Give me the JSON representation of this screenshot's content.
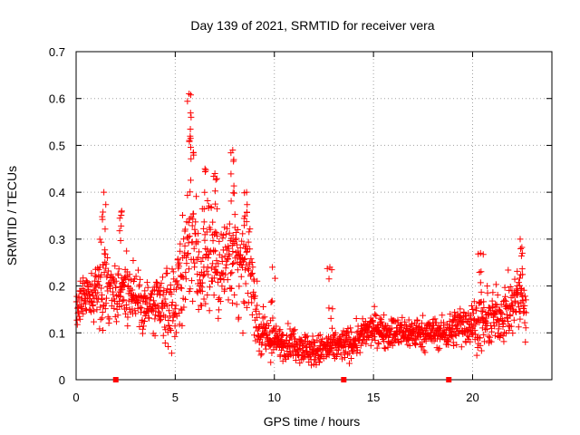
{
  "chart_data": {
    "type": "scatter",
    "title": "Day 139 of 2021, SRMTID for receiver vera",
    "xlabel": "GPS time / hours",
    "ylabel": "SRMTID / TECUs",
    "xlim": [
      0,
      24
    ],
    "ylim": [
      0,
      0.7
    ],
    "xticks": [
      "0",
      "5",
      "10",
      "15",
      "20"
    ],
    "yticks": [
      "0",
      "0.1",
      "0.2",
      "0.3",
      "0.4",
      "0.5",
      "0.6",
      "0.7"
    ],
    "grid": true,
    "marker": "+",
    "color": "#ff0000",
    "gap_markers_hours": [
      2.0,
      13.5,
      18.8
    ],
    "series": [
      {
        "name": "SRMTID",
        "envelope": [
          {
            "x": 0.0,
            "y": 0.15,
            "spread": 0.04
          },
          {
            "x": 0.5,
            "y": 0.17,
            "spread": 0.05
          },
          {
            "x": 1.0,
            "y": 0.19,
            "spread": 0.06
          },
          {
            "x": 1.5,
            "y": 0.2,
            "spread": 0.08
          },
          {
            "x": 2.0,
            "y": 0.18,
            "spread": 0.06
          },
          {
            "x": 2.5,
            "y": 0.2,
            "spread": 0.07
          },
          {
            "x": 3.0,
            "y": 0.18,
            "spread": 0.06
          },
          {
            "x": 3.5,
            "y": 0.16,
            "spread": 0.06
          },
          {
            "x": 4.0,
            "y": 0.15,
            "spread": 0.06
          },
          {
            "x": 4.5,
            "y": 0.15,
            "spread": 0.07
          },
          {
            "x": 5.0,
            "y": 0.17,
            "spread": 0.08
          },
          {
            "x": 5.5,
            "y": 0.25,
            "spread": 0.12
          },
          {
            "x": 5.8,
            "y": 0.35,
            "spread": 0.15
          },
          {
            "x": 6.2,
            "y": 0.22,
            "spread": 0.1
          },
          {
            "x": 6.8,
            "y": 0.28,
            "spread": 0.11
          },
          {
            "x": 7.3,
            "y": 0.22,
            "spread": 0.09
          },
          {
            "x": 7.8,
            "y": 0.3,
            "spread": 0.12
          },
          {
            "x": 8.3,
            "y": 0.22,
            "spread": 0.09
          },
          {
            "x": 8.8,
            "y": 0.25,
            "spread": 0.08
          },
          {
            "x": 9.2,
            "y": 0.1,
            "spread": 0.05
          },
          {
            "x": 10.0,
            "y": 0.08,
            "spread": 0.03
          },
          {
            "x": 11.0,
            "y": 0.08,
            "spread": 0.03
          },
          {
            "x": 12.0,
            "y": 0.06,
            "spread": 0.03
          },
          {
            "x": 13.0,
            "y": 0.07,
            "spread": 0.03
          },
          {
            "x": 14.0,
            "y": 0.08,
            "spread": 0.03
          },
          {
            "x": 15.0,
            "y": 0.11,
            "spread": 0.03
          },
          {
            "x": 16.0,
            "y": 0.1,
            "spread": 0.03
          },
          {
            "x": 17.0,
            "y": 0.1,
            "spread": 0.03
          },
          {
            "x": 18.0,
            "y": 0.1,
            "spread": 0.03
          },
          {
            "x": 18.7,
            "y": 0.1,
            "spread": 0.03
          },
          {
            "x": 19.5,
            "y": 0.12,
            "spread": 0.04
          },
          {
            "x": 20.5,
            "y": 0.12,
            "spread": 0.05
          },
          {
            "x": 21.5,
            "y": 0.14,
            "spread": 0.05
          },
          {
            "x": 22.0,
            "y": 0.15,
            "spread": 0.06
          },
          {
            "x": 22.5,
            "y": 0.2,
            "spread": 0.08
          },
          {
            "x": 22.7,
            "y": 0.12,
            "spread": 0.04
          }
        ],
        "peaks": [
          {
            "x": 1.4,
            "y": 0.4
          },
          {
            "x": 2.3,
            "y": 0.36
          },
          {
            "x": 5.7,
            "y": 0.61
          },
          {
            "x": 5.8,
            "y": 0.56
          },
          {
            "x": 6.5,
            "y": 0.45
          },
          {
            "x": 7.0,
            "y": 0.44
          },
          {
            "x": 7.9,
            "y": 0.49
          },
          {
            "x": 8.6,
            "y": 0.4
          },
          {
            "x": 9.9,
            "y": 0.24
          },
          {
            "x": 12.8,
            "y": 0.24
          },
          {
            "x": 20.4,
            "y": 0.27
          },
          {
            "x": 22.4,
            "y": 0.3
          }
        ]
      }
    ]
  }
}
